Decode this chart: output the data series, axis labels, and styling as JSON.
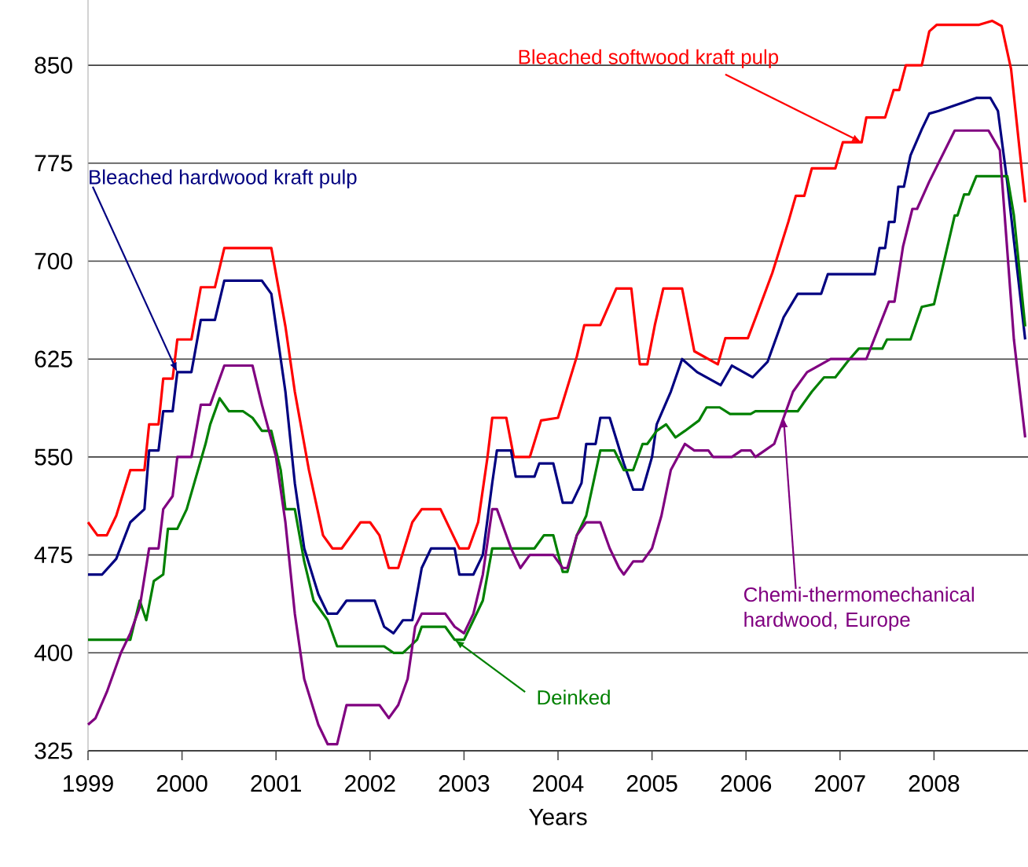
{
  "chart_data": {
    "type": "line",
    "xlabel": "Years",
    "grid": "y",
    "xlim": [
      1999,
      2009
    ],
    "ylim": [
      325,
      900
    ],
    "xticks": [
      1999,
      2000,
      2001,
      2002,
      2003,
      2004,
      2005,
      2006,
      2007,
      2008
    ],
    "yticks": [
      325,
      400,
      475,
      550,
      625,
      700,
      775,
      850
    ],
    "series": [
      {
        "name": "Bleached softwood kraft pulp",
        "color": "#ff0000",
        "x": [
          1999,
          1999.1,
          1999.2,
          1999.3,
          1999.45,
          1999.6,
          1999.65,
          1999.75,
          1999.8,
          1999.9,
          1999.95,
          2000.1,
          2000.2,
          2000.35,
          2000.45,
          2000.95,
          2001.1,
          2001.2,
          2001.35,
          2001.5,
          2001.6,
          2001.7,
          2001.9,
          2002.0,
          2002.1,
          2002.2,
          2002.3,
          2002.45,
          2002.55,
          2002.75,
          2002.85,
          2002.95,
          2003.05,
          2003.15,
          2003.25,
          2003.3,
          2003.45,
          2003.53,
          2003.7,
          2003.82,
          2004.0,
          2004.2,
          2004.28,
          2004.45,
          2004.62,
          2004.78,
          2004.87,
          2004.95,
          2005.03,
          2005.12,
          2005.32,
          2005.45,
          2005.7,
          2005.78,
          2006.02,
          2006.12,
          2006.28,
          2006.45,
          2006.53,
          2006.62,
          2006.7,
          2006.95,
          2007.03,
          2007.23,
          2007.28,
          2007.48,
          2007.57,
          2007.63,
          2007.7,
          2007.87,
          2007.95,
          2008.03,
          2008.48,
          2008.62,
          2008.72,
          2008.82,
          2008.97
        ],
        "values": [
          500,
          490,
          490,
          505,
          540,
          540,
          575,
          575,
          610,
          610,
          640,
          640,
          680,
          680,
          710,
          710,
          650,
          600,
          540,
          490,
          480,
          480,
          500,
          500,
          490,
          465,
          465,
          500,
          510,
          510,
          495,
          480,
          480,
          500,
          550,
          580,
          580,
          550,
          550,
          578,
          580,
          627,
          651,
          651,
          679,
          679,
          621,
          621,
          651,
          679,
          679,
          631,
          621,
          641,
          641,
          660,
          691,
          730,
          750,
          750,
          771,
          771,
          791,
          791,
          810,
          810,
          831,
          831,
          850,
          850,
          876,
          881,
          881,
          884,
          880,
          847,
          745
        ]
      },
      {
        "name": "Bleached hardwood kraft pulp",
        "color": "#000080",
        "x": [
          1999,
          1999.15,
          1999.3,
          1999.45,
          1999.6,
          1999.65,
          1999.75,
          1999.8,
          1999.9,
          1999.95,
          2000.1,
          2000.2,
          2000.35,
          2000.45,
          2000.85,
          2000.95,
          2001.1,
          2001.2,
          2001.3,
          2001.45,
          2001.55,
          2001.65,
          2001.75,
          2002.05,
          2002.15,
          2002.25,
          2002.35,
          2002.45,
          2002.55,
          2002.65,
          2002.9,
          2002.95,
          2003.1,
          2003.2,
          2003.3,
          2003.35,
          2003.5,
          2003.55,
          2003.75,
          2003.8,
          2003.95,
          2004.05,
          2004.15,
          2004.25,
          2004.3,
          2004.4,
          2004.45,
          2004.55,
          2004.7,
          2004.8,
          2004.9,
          2005.0,
          2005.05,
          2005.2,
          2005.32,
          2005.48,
          2005.73,
          2005.85,
          2006.07,
          2006.23,
          2006.4,
          2006.55,
          2006.8,
          2006.87,
          2007.37,
          2007.42,
          2007.48,
          2007.52,
          2007.58,
          2007.62,
          2007.68,
          2007.75,
          2007.87,
          2007.95,
          2008.05,
          2008.25,
          2008.45,
          2008.6,
          2008.68,
          2008.78,
          2008.97
        ],
        "values": [
          460,
          460,
          472,
          500,
          510,
          555,
          555,
          585,
          585,
          615,
          615,
          655,
          655,
          685,
          685,
          675,
          600,
          530,
          480,
          445,
          430,
          430,
          440,
          440,
          420,
          415,
          425,
          425,
          465,
          480,
          480,
          460,
          460,
          475,
          530,
          555,
          555,
          535,
          535,
          545,
          545,
          515,
          515,
          530,
          560,
          560,
          580,
          580,
          545,
          525,
          525,
          550,
          575,
          600,
          625,
          615,
          605,
          620,
          611,
          623,
          657,
          675,
          675,
          690,
          690,
          710,
          710,
          730,
          730,
          757,
          757,
          781,
          801,
          813,
          815,
          820,
          825,
          825,
          815,
          760,
          640
        ]
      },
      {
        "name": "Deinked",
        "color": "#008000",
        "x": [
          1999,
          1999.45,
          1999.55,
          1999.62,
          1999.7,
          1999.8,
          1999.85,
          1999.95,
          2000.05,
          2000.15,
          2000.25,
          2000.3,
          2000.4,
          2000.5,
          2000.65,
          2000.75,
          2000.85,
          2000.95,
          2001.05,
          2001.1,
          2001.2,
          2001.3,
          2001.4,
          2001.55,
          2001.65,
          2002.15,
          2002.25,
          2002.35,
          2002.5,
          2002.55,
          2002.8,
          2002.9,
          2003.0,
          2003.1,
          2003.2,
          2003.3,
          2003.75,
          2003.85,
          2003.95,
          2004.05,
          2004.1,
          2004.2,
          2004.3,
          2004.45,
          2004.6,
          2004.7,
          2004.8,
          2004.9,
          2004.95,
          2005.05,
          2005.15,
          2005.25,
          2005.35,
          2005.5,
          2005.58,
          2005.72,
          2005.83,
          2006.05,
          2006.1,
          2006.55,
          2006.7,
          2006.83,
          2006.95,
          2007.08,
          2007.2,
          2007.45,
          2007.5,
          2007.75,
          2007.87,
          2008.0,
          2008.22,
          2008.25,
          2008.32,
          2008.37,
          2008.45,
          2008.78,
          2008.85,
          2008.97
        ],
        "values": [
          410,
          410,
          440,
          425,
          455,
          460,
          495,
          495,
          510,
          535,
          560,
          575,
          595,
          585,
          585,
          580,
          570,
          570,
          540,
          510,
          510,
          470,
          440,
          425,
          405,
          405,
          400,
          400,
          410,
          420,
          420,
          410,
          410,
          425,
          440,
          480,
          480,
          490,
          490,
          462,
          462,
          490,
          505,
          555,
          555,
          540,
          540,
          560,
          560,
          570,
          575,
          565,
          570,
          578,
          588,
          588,
          583,
          583,
          585,
          585,
          600,
          611,
          611,
          623,
          633,
          633,
          640,
          640,
          665,
          667,
          735,
          735,
          751,
          751,
          765,
          765,
          735,
          650
        ]
      },
      {
        "name": "Chemi-thermomechanical hardwood, Europe",
        "color": "#800080",
        "x": [
          1999,
          1999.08,
          1999.2,
          1999.35,
          1999.45,
          1999.55,
          1999.65,
          1999.75,
          1999.8,
          1999.9,
          1999.95,
          2000.1,
          2000.2,
          2000.3,
          2000.45,
          2000.75,
          2000.85,
          2001.0,
          2001.1,
          2001.2,
          2001.3,
          2001.45,
          2001.55,
          2001.65,
          2001.75,
          2002.1,
          2002.2,
          2002.3,
          2002.4,
          2002.48,
          2002.55,
          2002.8,
          2002.9,
          2003.0,
          2003.1,
          2003.2,
          2003.3,
          2003.35,
          2003.5,
          2003.6,
          2003.7,
          2003.95,
          2004.05,
          2004.1,
          2004.2,
          2004.3,
          2004.45,
          2004.55,
          2004.65,
          2004.7,
          2004.8,
          2004.9,
          2005.0,
          2005.1,
          2005.2,
          2005.35,
          2005.45,
          2005.6,
          2005.65,
          2005.85,
          2005.95,
          2006.05,
          2006.1,
          2006.2,
          2006.3,
          2006.4,
          2006.5,
          2006.65,
          2006.8,
          2006.9,
          2007.28,
          2007.52,
          2007.58,
          2007.67,
          2007.77,
          2007.82,
          2007.95,
          2008.22,
          2008.58,
          2008.7,
          2008.85,
          2008.97
        ],
        "values": [
          345,
          350,
          370,
          400,
          415,
          435,
          480,
          480,
          510,
          520,
          550,
          550,
          590,
          590,
          620,
          620,
          590,
          550,
          500,
          430,
          380,
          345,
          330,
          330,
          360,
          360,
          350,
          360,
          380,
          420,
          430,
          430,
          420,
          415,
          430,
          460,
          510,
          510,
          480,
          465,
          475,
          475,
          465,
          465,
          490,
          500,
          500,
          480,
          465,
          460,
          470,
          470,
          480,
          505,
          540,
          560,
          555,
          555,
          550,
          550,
          555,
          555,
          550,
          555,
          560,
          580,
          600,
          615,
          621,
          625,
          625,
          669,
          669,
          711,
          740,
          740,
          761,
          800,
          800,
          785,
          640,
          565
        ]
      }
    ]
  }
}
